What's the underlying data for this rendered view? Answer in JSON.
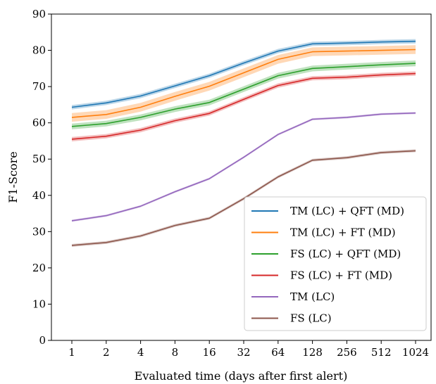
{
  "chart_data": {
    "type": "line",
    "title": "",
    "xlabel": "Evaluated time (days after first alert)",
    "ylabel": "F1-Score",
    "x": [
      "1",
      "2",
      "4",
      "8",
      "16",
      "32",
      "64",
      "128",
      "256",
      "512",
      "1024"
    ],
    "x_scale": "log2",
    "ylim": [
      0,
      90
    ],
    "yticks": [
      0,
      10,
      20,
      30,
      40,
      50,
      60,
      70,
      80,
      90
    ],
    "grid": false,
    "legend_position": "lower-right",
    "series": [
      {
        "name": "TM (LC) + QFT (MD)",
        "color": "#1f77b4",
        "values": [
          64.3,
          65.5,
          67.4,
          70.2,
          73.0,
          76.5,
          79.8,
          81.8,
          82.0,
          82.3,
          82.5
        ],
        "band": 0.6
      },
      {
        "name": "TM (LC) + FT (MD)",
        "color": "#ff7f0e",
        "values": [
          61.5,
          62.3,
          64.3,
          67.3,
          70.1,
          73.8,
          77.5,
          79.6,
          79.8,
          80.0,
          80.2
        ],
        "band": 1.2
      },
      {
        "name": "FS (LC) + QFT (MD)",
        "color": "#2ca02c",
        "values": [
          59.0,
          59.8,
          61.5,
          63.8,
          65.6,
          69.3,
          73.0,
          75.0,
          75.5,
          76.0,
          76.4
        ],
        "band": 0.8
      },
      {
        "name": "FS (LC) + FT (MD)",
        "color": "#d62728",
        "values": [
          55.5,
          56.3,
          58.0,
          60.6,
          62.6,
          66.5,
          70.3,
          72.3,
          72.6,
          73.2,
          73.6
        ],
        "band": 0.6
      },
      {
        "name": "TM (LC)",
        "color": "#9467bd",
        "values": [
          33.0,
          34.4,
          37.0,
          41.0,
          44.6,
          50.5,
          56.8,
          61.0,
          61.5,
          62.4,
          62.7
        ],
        "band": 0.3
      },
      {
        "name": "FS (LC)",
        "color": "#8c564b",
        "values": [
          26.2,
          27.0,
          28.8,
          31.7,
          33.7,
          39.1,
          45.1,
          49.7,
          50.4,
          51.8,
          52.3
        ],
        "band": 0.4
      }
    ]
  }
}
